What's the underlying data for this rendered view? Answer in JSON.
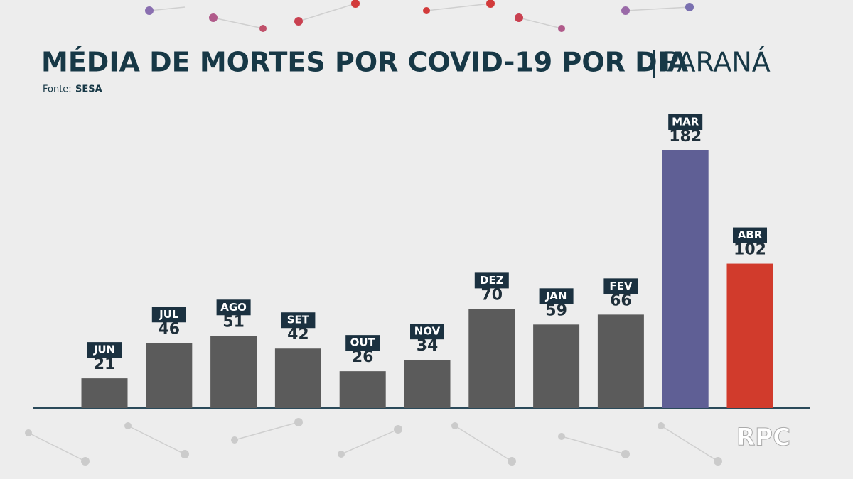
{
  "chart_data": {
    "type": "bar",
    "title": "MÉDIA DE MORTES POR COVID-19 POR DIA",
    "region": "PARANÁ",
    "source_label": "Fonte:",
    "source": "SESA",
    "watermark": "RPC",
    "categories": [
      "JUN",
      "JUL",
      "AGO",
      "SET",
      "OUT",
      "NOV",
      "DEZ",
      "JAN",
      "FEV",
      "MAR",
      "ABR"
    ],
    "values": [
      21,
      46,
      51,
      42,
      26,
      34,
      70,
      59,
      66,
      182,
      102
    ],
    "colors": [
      "#5b5b5b",
      "#5b5b5b",
      "#5b5b5b",
      "#5b5b5b",
      "#5b5b5b",
      "#5b5b5b",
      "#5b5b5b",
      "#5b5b5b",
      "#5b5b5b",
      "#5f5f95",
      "#d13b2c"
    ]
  }
}
